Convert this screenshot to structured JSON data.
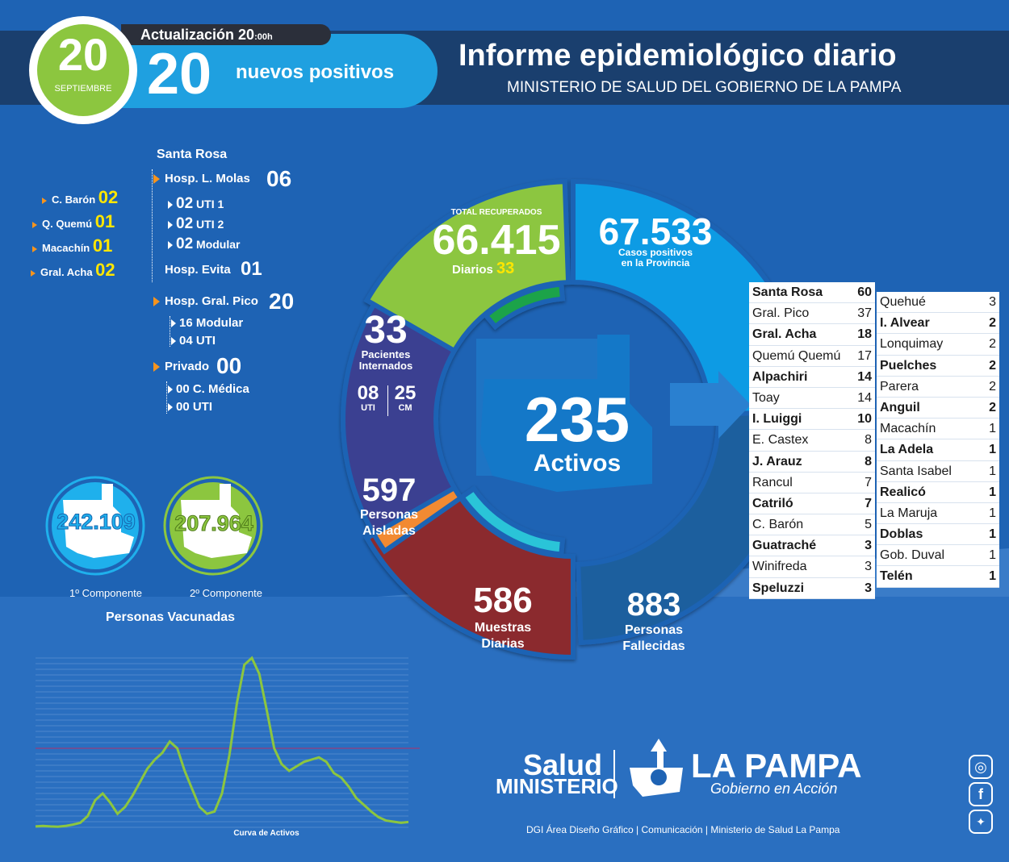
{
  "header": {
    "date_day": "20",
    "date_month": "SEPTIEMBRE",
    "update_label": "Actualización",
    "update_time": "20",
    "update_suffix": ":00h",
    "new_positive_count": "20",
    "new_positive_label": "nuevos positivos",
    "title": "Informe epidemiológico diario",
    "subtitle": "MINISTERIO DE SALUD DEL GOBIERNO DE LA PAMPA"
  },
  "hospitals": {
    "santa_rosa_title": "Santa Rosa",
    "molas": {
      "label": "Hosp. L. Molas",
      "value": "06",
      "subs": [
        {
          "value": "02",
          "label": "UTI 1"
        },
        {
          "value": "02",
          "label": "UTI 2"
        },
        {
          "value": "02",
          "label": "Modular"
        }
      ]
    },
    "evita": {
      "label": "Hosp. Evita",
      "value": "01"
    },
    "pico": {
      "label": "Hosp. Gral. Pico",
      "value": "20",
      "subs": [
        {
          "label": "16 Modular"
        },
        {
          "label": "04 UTI"
        }
      ]
    },
    "privado": {
      "label": "Privado",
      "value": "00",
      "subs": [
        {
          "label": "00 C. Médica"
        },
        {
          "label": "00 UTI"
        }
      ]
    },
    "left": [
      {
        "label": "C. Barón",
        "value": "02"
      },
      {
        "label": "Q. Quemú",
        "value": "01"
      },
      {
        "label": "Macachín",
        "value": "01"
      },
      {
        "label": "Gral. Acha",
        "value": "02"
      }
    ]
  },
  "vaccines": {
    "first_value": "242.109",
    "first_label": "1º Componente",
    "second_value": "207.964",
    "second_label": "2º Componente",
    "title": "Personas Vacunadas"
  },
  "chart_data": {
    "type": "line",
    "title": "Curva de Activos",
    "x": [
      0,
      1,
      2,
      3,
      4,
      5,
      6,
      7,
      8,
      9,
      10,
      11,
      12,
      13,
      14,
      15,
      16,
      17,
      18,
      19,
      20,
      21,
      22,
      23,
      24,
      25,
      26,
      27,
      28,
      29,
      30,
      31,
      32,
      33,
      34,
      35,
      36,
      37,
      38,
      39,
      40,
      41,
      42,
      43,
      44,
      45,
      46,
      47,
      48,
      49,
      50
    ],
    "series": [
      {
        "values": [
          40,
          60,
          40,
          30,
          60,
          120,
          200,
          500,
          1200,
          1500,
          1100,
          600,
          900,
          1400,
          2000,
          2600,
          3000,
          3300,
          3800,
          3500,
          2500,
          1700,
          900,
          600,
          700,
          1500,
          3200,
          5500,
          7200,
          7500,
          6800,
          5200,
          3500,
          2800,
          2500,
          2700,
          2900,
          3000,
          3100,
          2900,
          2400,
          2200,
          1800,
          1300,
          1000,
          700,
          450,
          300,
          250,
          200,
          235
        ]
      }
    ],
    "threshold": 3500
  },
  "ring": {
    "recovered_label": "TOTAL RECUPERADOS",
    "recovered_value": "66.415",
    "recovered_daily_label": "Diarios",
    "recovered_daily_value": "33",
    "positives_value": "67.533",
    "positives_label1": "Casos positivos",
    "positives_label2": "en la Provincia",
    "internados_value": "33",
    "internados_label1": "Pacientes",
    "internados_label2": "Internados",
    "uti_value": "08",
    "uti_label": "UTI",
    "cm_value": "25",
    "cm_label": "CM",
    "isolated_value": "597",
    "isolated_label1": "Personas",
    "isolated_label2": "Aisladas",
    "samples_value": "586",
    "samples_label1": "Muestras",
    "samples_label2": "Diarias",
    "deceased_value": "883",
    "deceased_label1": "Personas",
    "deceased_label2": "Fallecidas",
    "active_value": "235",
    "active_label": "Activos"
  },
  "localities_left": [
    {
      "name": "Santa Rosa",
      "value": "60",
      "bold": true
    },
    {
      "name": "Gral. Pico",
      "value": "37",
      "bold": false
    },
    {
      "name": "Gral. Acha",
      "value": "18",
      "bold": true
    },
    {
      "name": "Quemú Quemú",
      "value": "17",
      "bold": false
    },
    {
      "name": "Alpachiri",
      "value": "14",
      "bold": true
    },
    {
      "name": "Toay",
      "value": "14",
      "bold": false
    },
    {
      "name": "I. Luiggi",
      "value": "10",
      "bold": true
    },
    {
      "name": "E. Castex",
      "value": "8",
      "bold": false
    },
    {
      "name": "J. Arauz",
      "value": "8",
      "bold": true
    },
    {
      "name": "Rancul",
      "value": "7",
      "bold": false
    },
    {
      "name": "Catriló",
      "value": "7",
      "bold": true
    },
    {
      "name": "C. Barón",
      "value": "5",
      "bold": false
    },
    {
      "name": "Guatraché",
      "value": "3",
      "bold": true
    },
    {
      "name": "Winifreda",
      "value": "3",
      "bold": false
    },
    {
      "name": "Speluzzi",
      "value": "3",
      "bold": true
    }
  ],
  "localities_right": [
    {
      "name": "Quehué",
      "value": "3",
      "bold": false
    },
    {
      "name": "I. Alvear",
      "value": "2",
      "bold": true
    },
    {
      "name": "Lonquimay",
      "value": "2",
      "bold": false
    },
    {
      "name": "Puelches",
      "value": "2",
      "bold": true
    },
    {
      "name": "Parera",
      "value": "2",
      "bold": false
    },
    {
      "name": "Anguil",
      "value": "2",
      "bold": true
    },
    {
      "name": "Macachín",
      "value": "1",
      "bold": false
    },
    {
      "name": "La Adela",
      "value": "1",
      "bold": true
    },
    {
      "name": "Santa Isabel",
      "value": "1",
      "bold": false
    },
    {
      "name": "Realicó",
      "value": "1",
      "bold": true
    },
    {
      "name": "La Maruja",
      "value": "1",
      "bold": false
    },
    {
      "name": "Doblas",
      "value": "1",
      "bold": true
    },
    {
      "name": "Gob. Duval",
      "value": "1",
      "bold": false
    },
    {
      "name": "Telén",
      "value": "1",
      "bold": true
    }
  ],
  "footer": {
    "salud": "Salud",
    "ministerio": "MINISTERIO",
    "la_pampa": "LA PAMPA",
    "gobierno": "Gobierno en Acción",
    "credits": "DGI Área Diseño Gráfico  | Comunicación | Ministerio de Salud La Pampa"
  },
  "icons": [
    "instagram-icon",
    "facebook-icon",
    "twitter-icon"
  ]
}
